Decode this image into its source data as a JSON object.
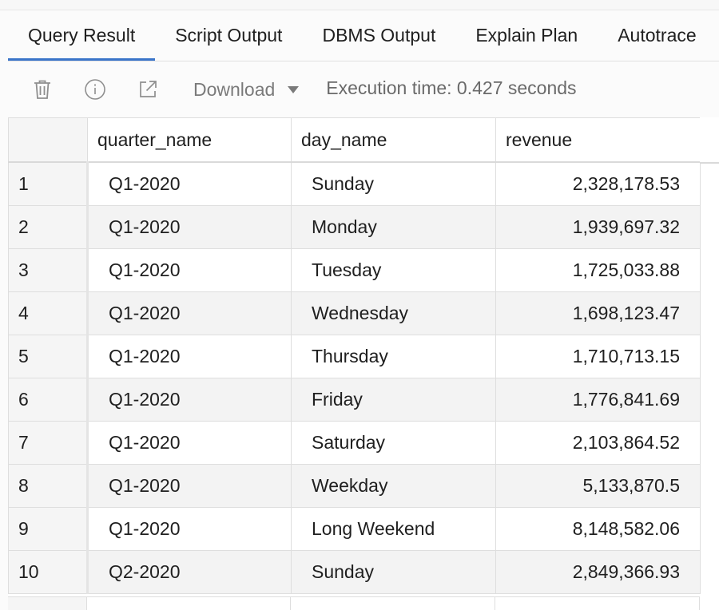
{
  "tabs": [
    {
      "label": "Query Result",
      "active": true
    },
    {
      "label": "Script Output",
      "active": false
    },
    {
      "label": "DBMS Output",
      "active": false
    },
    {
      "label": "Explain Plan",
      "active": false
    },
    {
      "label": "Autotrace",
      "active": false
    }
  ],
  "toolbar": {
    "icons": [
      "trash-icon",
      "info-icon",
      "external-link-icon"
    ],
    "download_label": "Download",
    "execution_time": "Execution time: 0.427 seconds"
  },
  "grid": {
    "columns": [
      "quarter_name",
      "day_name",
      "revenue"
    ],
    "rows": [
      {
        "n": "1",
        "quarter": "Q1-2020",
        "day": "Sunday",
        "revenue": "2,328,178.53"
      },
      {
        "n": "2",
        "quarter": "Q1-2020",
        "day": "Monday",
        "revenue": "1,939,697.32"
      },
      {
        "n": "3",
        "quarter": "Q1-2020",
        "day": "Tuesday",
        "revenue": "1,725,033.88"
      },
      {
        "n": "4",
        "quarter": "Q1-2020",
        "day": "Wednesday",
        "revenue": "1,698,123.47"
      },
      {
        "n": "5",
        "quarter": "Q1-2020",
        "day": "Thursday",
        "revenue": "1,710,713.15"
      },
      {
        "n": "6",
        "quarter": "Q1-2020",
        "day": "Friday",
        "revenue": "1,776,841.69"
      },
      {
        "n": "7",
        "quarter": "Q1-2020",
        "day": "Saturday",
        "revenue": "2,103,864.52"
      },
      {
        "n": "8",
        "quarter": "Q1-2020",
        "day": "Weekday",
        "revenue": "5,133,870.5"
      },
      {
        "n": "9",
        "quarter": "Q1-2020",
        "day": "Long Weekend",
        "revenue": "8,148,582.06"
      },
      {
        "n": "10",
        "quarter": "Q2-2020",
        "day": "Sunday",
        "revenue": "2,849,366.93"
      }
    ]
  },
  "colors": {
    "accent": "#3a74c9",
    "row_alt": "#f3f3f3",
    "row_header": "#f5f5f5",
    "border": "#dedede"
  }
}
